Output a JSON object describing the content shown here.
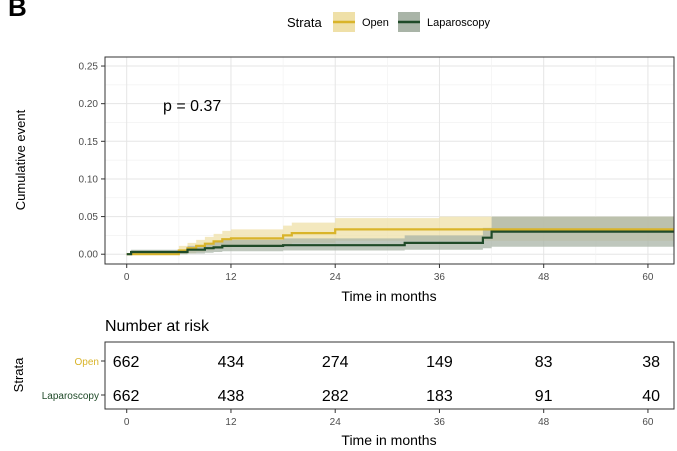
{
  "panel_label": "B",
  "legend": {
    "title": "Strata",
    "items": [
      {
        "label": "Open",
        "color": "#d9b42a",
        "band_color": "#efe0a8"
      },
      {
        "label": "Laparoscopy",
        "color": "#1f4a28",
        "band_color": "#a9b4a7"
      }
    ]
  },
  "annotation": "p = 0.37",
  "risk_table": {
    "title": "Number at risk",
    "y_title": "Strata",
    "x_label": "Time in months",
    "times": [
      0,
      12,
      24,
      36,
      48,
      60
    ],
    "rows": [
      {
        "label": "Open",
        "color": "#d9b42a",
        "counts": [
          "662",
          "434",
          "274",
          "149",
          "83",
          "38"
        ]
      },
      {
        "label": "Laparoscopy",
        "color": "#1f4a28",
        "counts": [
          "662",
          "438",
          "282",
          "183",
          "91",
          "40"
        ]
      }
    ]
  },
  "chart_data": {
    "type": "line",
    "title": "",
    "xlabel": "Time in months",
    "ylabel": "Cumulative event",
    "xlim": [
      -2.5,
      63
    ],
    "ylim": [
      -0.013,
      0.262
    ],
    "xticks": [
      0,
      12,
      24,
      36,
      48,
      60
    ],
    "yticks": [
      0.0,
      0.05,
      0.1,
      0.15,
      0.2,
      0.25
    ],
    "ytick_labels": [
      "0.00",
      "0.05",
      "0.10",
      "0.15",
      "0.20",
      "0.25"
    ],
    "grid": true,
    "legend_position": "top",
    "series": [
      {
        "name": "Open",
        "step": true,
        "x": [
          0,
          0.3,
          6,
          7,
          8,
          9,
          10,
          11,
          12,
          18,
          19,
          24,
          36,
          42
        ],
        "y": [
          0,
          0,
          0.005,
          0.008,
          0.011,
          0.014,
          0.017,
          0.02,
          0.021,
          0.025,
          0.028,
          0.033,
          0.033,
          0.033
        ],
        "lower": [
          0,
          0,
          0.0,
          0.001,
          0.003,
          0.005,
          0.007,
          0.009,
          0.01,
          0.013,
          0.015,
          0.018,
          0.018,
          0.018
        ],
        "upper": [
          0,
          0,
          0.011,
          0.015,
          0.019,
          0.023,
          0.027,
          0.031,
          0.033,
          0.038,
          0.042,
          0.048,
          0.05,
          0.05
        ]
      },
      {
        "name": "Laparoscopy",
        "step": true,
        "x": [
          0,
          0.5,
          6,
          7,
          9,
          10,
          11,
          18,
          32,
          41,
          42,
          63
        ],
        "y": [
          0,
          0.003,
          0.003,
          0.006,
          0.008,
          0.009,
          0.011,
          0.012,
          0.015,
          0.022,
          0.03,
          0.03
        ],
        "lower": [
          0,
          0,
          0,
          0.001,
          0.002,
          0.003,
          0.004,
          0.005,
          0.006,
          0.008,
          0.01,
          0.01
        ],
        "upper": [
          0,
          0.006,
          0.006,
          0.011,
          0.014,
          0.016,
          0.019,
          0.021,
          0.025,
          0.035,
          0.05,
          0.05
        ]
      }
    ]
  }
}
